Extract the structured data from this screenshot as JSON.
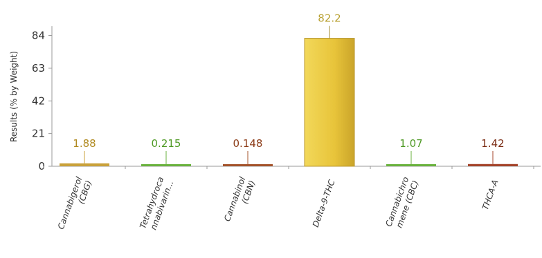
{
  "chart_data": {
    "type": "bar",
    "title": "",
    "xlabel": "",
    "ylabel": "Results (% by Weight)",
    "ylim": [
      0,
      90
    ],
    "yticks": [
      0,
      21,
      42,
      63,
      84
    ],
    "grid": false,
    "legend": "none",
    "categories": [
      [
        "Cannabigerol",
        "(CBG)"
      ],
      [
        "Tetrahydroca",
        "nnabivarin..."
      ],
      [
        "Cannabinol",
        "(CBN)"
      ],
      [
        "Delta-9-THC"
      ],
      [
        "Cannabichro",
        "mene (CBC)"
      ],
      [
        "THCA-A"
      ]
    ],
    "values": [
      1.88,
      0.215,
      0.148,
      82.2,
      1.07,
      1.42
    ],
    "value_labels": [
      "1.88",
      "0.215",
      "0.148",
      "82.2",
      "1.07",
      "1.42"
    ],
    "colors": [
      "#c9a13a",
      "#6ab23e",
      "#a4532b",
      "#e8c43a",
      "#6ab23e",
      "#a4442a"
    ],
    "label_colors": [
      "#b08a20",
      "#4f9a25",
      "#8c3c18",
      "#b8a030",
      "#4f9a25",
      "#7a2a12"
    ]
  }
}
